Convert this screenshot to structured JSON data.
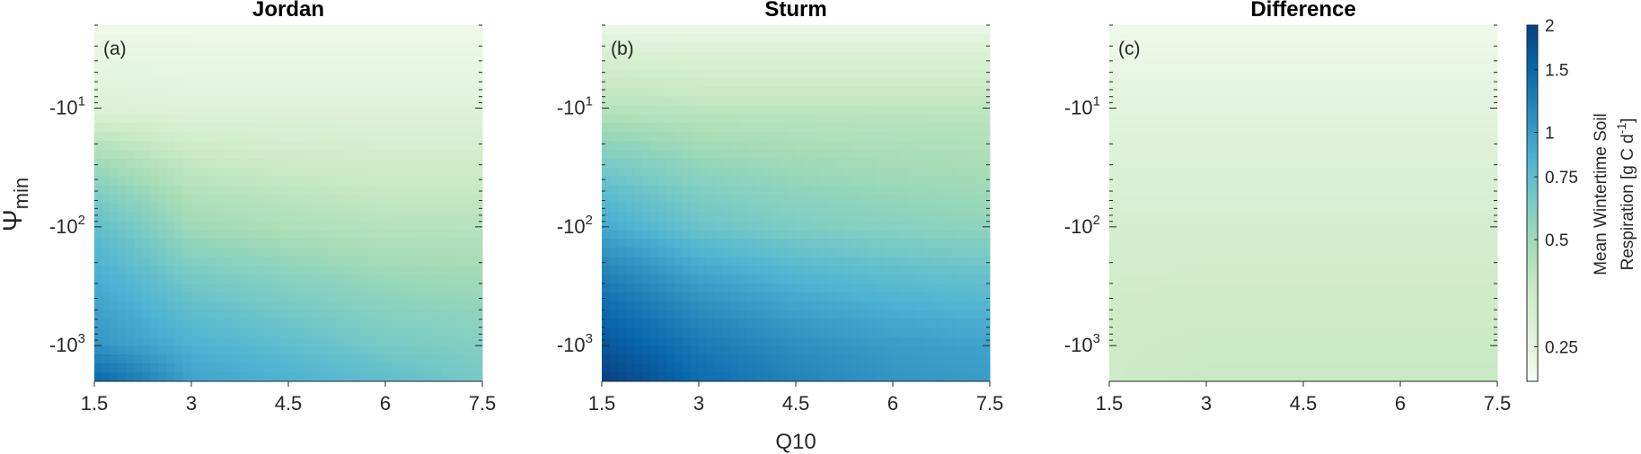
{
  "chart_data": {
    "type": "heatmap",
    "xlabel": "Q10",
    "ylabel": "Ψ",
    "ylabel_sub": "min",
    "x_ticks": [
      "1.5",
      "3",
      "4.5",
      "6",
      "7.5"
    ],
    "x_tick_values": [
      1.5,
      3,
      4.5,
      6,
      7.5
    ],
    "xlim": [
      1.5,
      7.5
    ],
    "y_scale": "log (negative)",
    "y_ticks": [
      {
        "base": "-10",
        "exp": "1",
        "value": -10
      },
      {
        "base": "-10",
        "exp": "2",
        "value": -100
      },
      {
        "base": "-10",
        "exp": "3",
        "value": -1000
      }
    ],
    "ylim": [
      -2000,
      -2
    ],
    "panels": [
      {
        "title": "Jordan",
        "label": "(a)",
        "grid_x": [
          1.5,
          3,
          4.5,
          6,
          7.5
        ],
        "grid_y": [
          -2,
          -10,
          -100,
          -1000,
          -2000
        ],
        "values": [
          [
            0.22,
            0.22,
            0.22,
            0.22,
            0.22
          ],
          [
            0.28,
            0.27,
            0.27,
            0.27,
            0.27
          ],
          [
            0.75,
            0.5,
            0.45,
            0.42,
            0.42
          ],
          [
            1.05,
            0.85,
            0.75,
            0.65,
            0.6
          ],
          [
            1.5,
            0.95,
            0.85,
            0.75,
            0.65
          ]
        ]
      },
      {
        "title": "Sturm",
        "label": "(b)",
        "grid_x": [
          1.5,
          3,
          4.5,
          6,
          7.5
        ],
        "grid_y": [
          -2,
          -10,
          -100,
          -1000,
          -2000
        ],
        "values": [
          [
            0.23,
            0.23,
            0.23,
            0.23,
            0.23
          ],
          [
            0.42,
            0.4,
            0.4,
            0.4,
            0.4
          ],
          [
            0.9,
            0.7,
            0.62,
            0.58,
            0.55
          ],
          [
            1.7,
            1.3,
            1.1,
            1.0,
            0.95
          ],
          [
            2.0,
            1.45,
            1.2,
            1.05,
            1.0
          ]
        ]
      },
      {
        "title": "Difference",
        "label": "(c)",
        "grid_x": [
          1.5,
          3,
          4.5,
          6,
          7.5
        ],
        "grid_y": [
          -2,
          -10,
          -100,
          -1000,
          -2000
        ],
        "values": [
          [
            0.22,
            0.22,
            0.22,
            0.22,
            0.22
          ],
          [
            0.26,
            0.26,
            0.26,
            0.26,
            0.26
          ],
          [
            0.32,
            0.32,
            0.32,
            0.32,
            0.32
          ],
          [
            0.35,
            0.36,
            0.36,
            0.36,
            0.36
          ],
          [
            0.35,
            0.37,
            0.37,
            0.37,
            0.37
          ]
        ]
      }
    ],
    "colorbar": {
      "label_line1": "Mean Wintertime Soil",
      "label_line2_prefix": "Respiration [g C d",
      "label_line2_sup": "-1",
      "label_line2_suffix": "]",
      "scale": "log",
      "range": [
        0.2,
        2
      ],
      "ticks": [
        "0.25",
        "0.5",
        "0.75",
        "1",
        "1.5",
        "2"
      ],
      "tick_values": [
        0.25,
        0.5,
        0.75,
        1,
        1.5,
        2
      ],
      "colors": [
        "#f7fcf0",
        "#e0f3db",
        "#ccebc5",
        "#a8ddb5",
        "#7bccc4",
        "#4eb3d3",
        "#2b8cbe",
        "#0868ac",
        "#084081"
      ]
    }
  }
}
